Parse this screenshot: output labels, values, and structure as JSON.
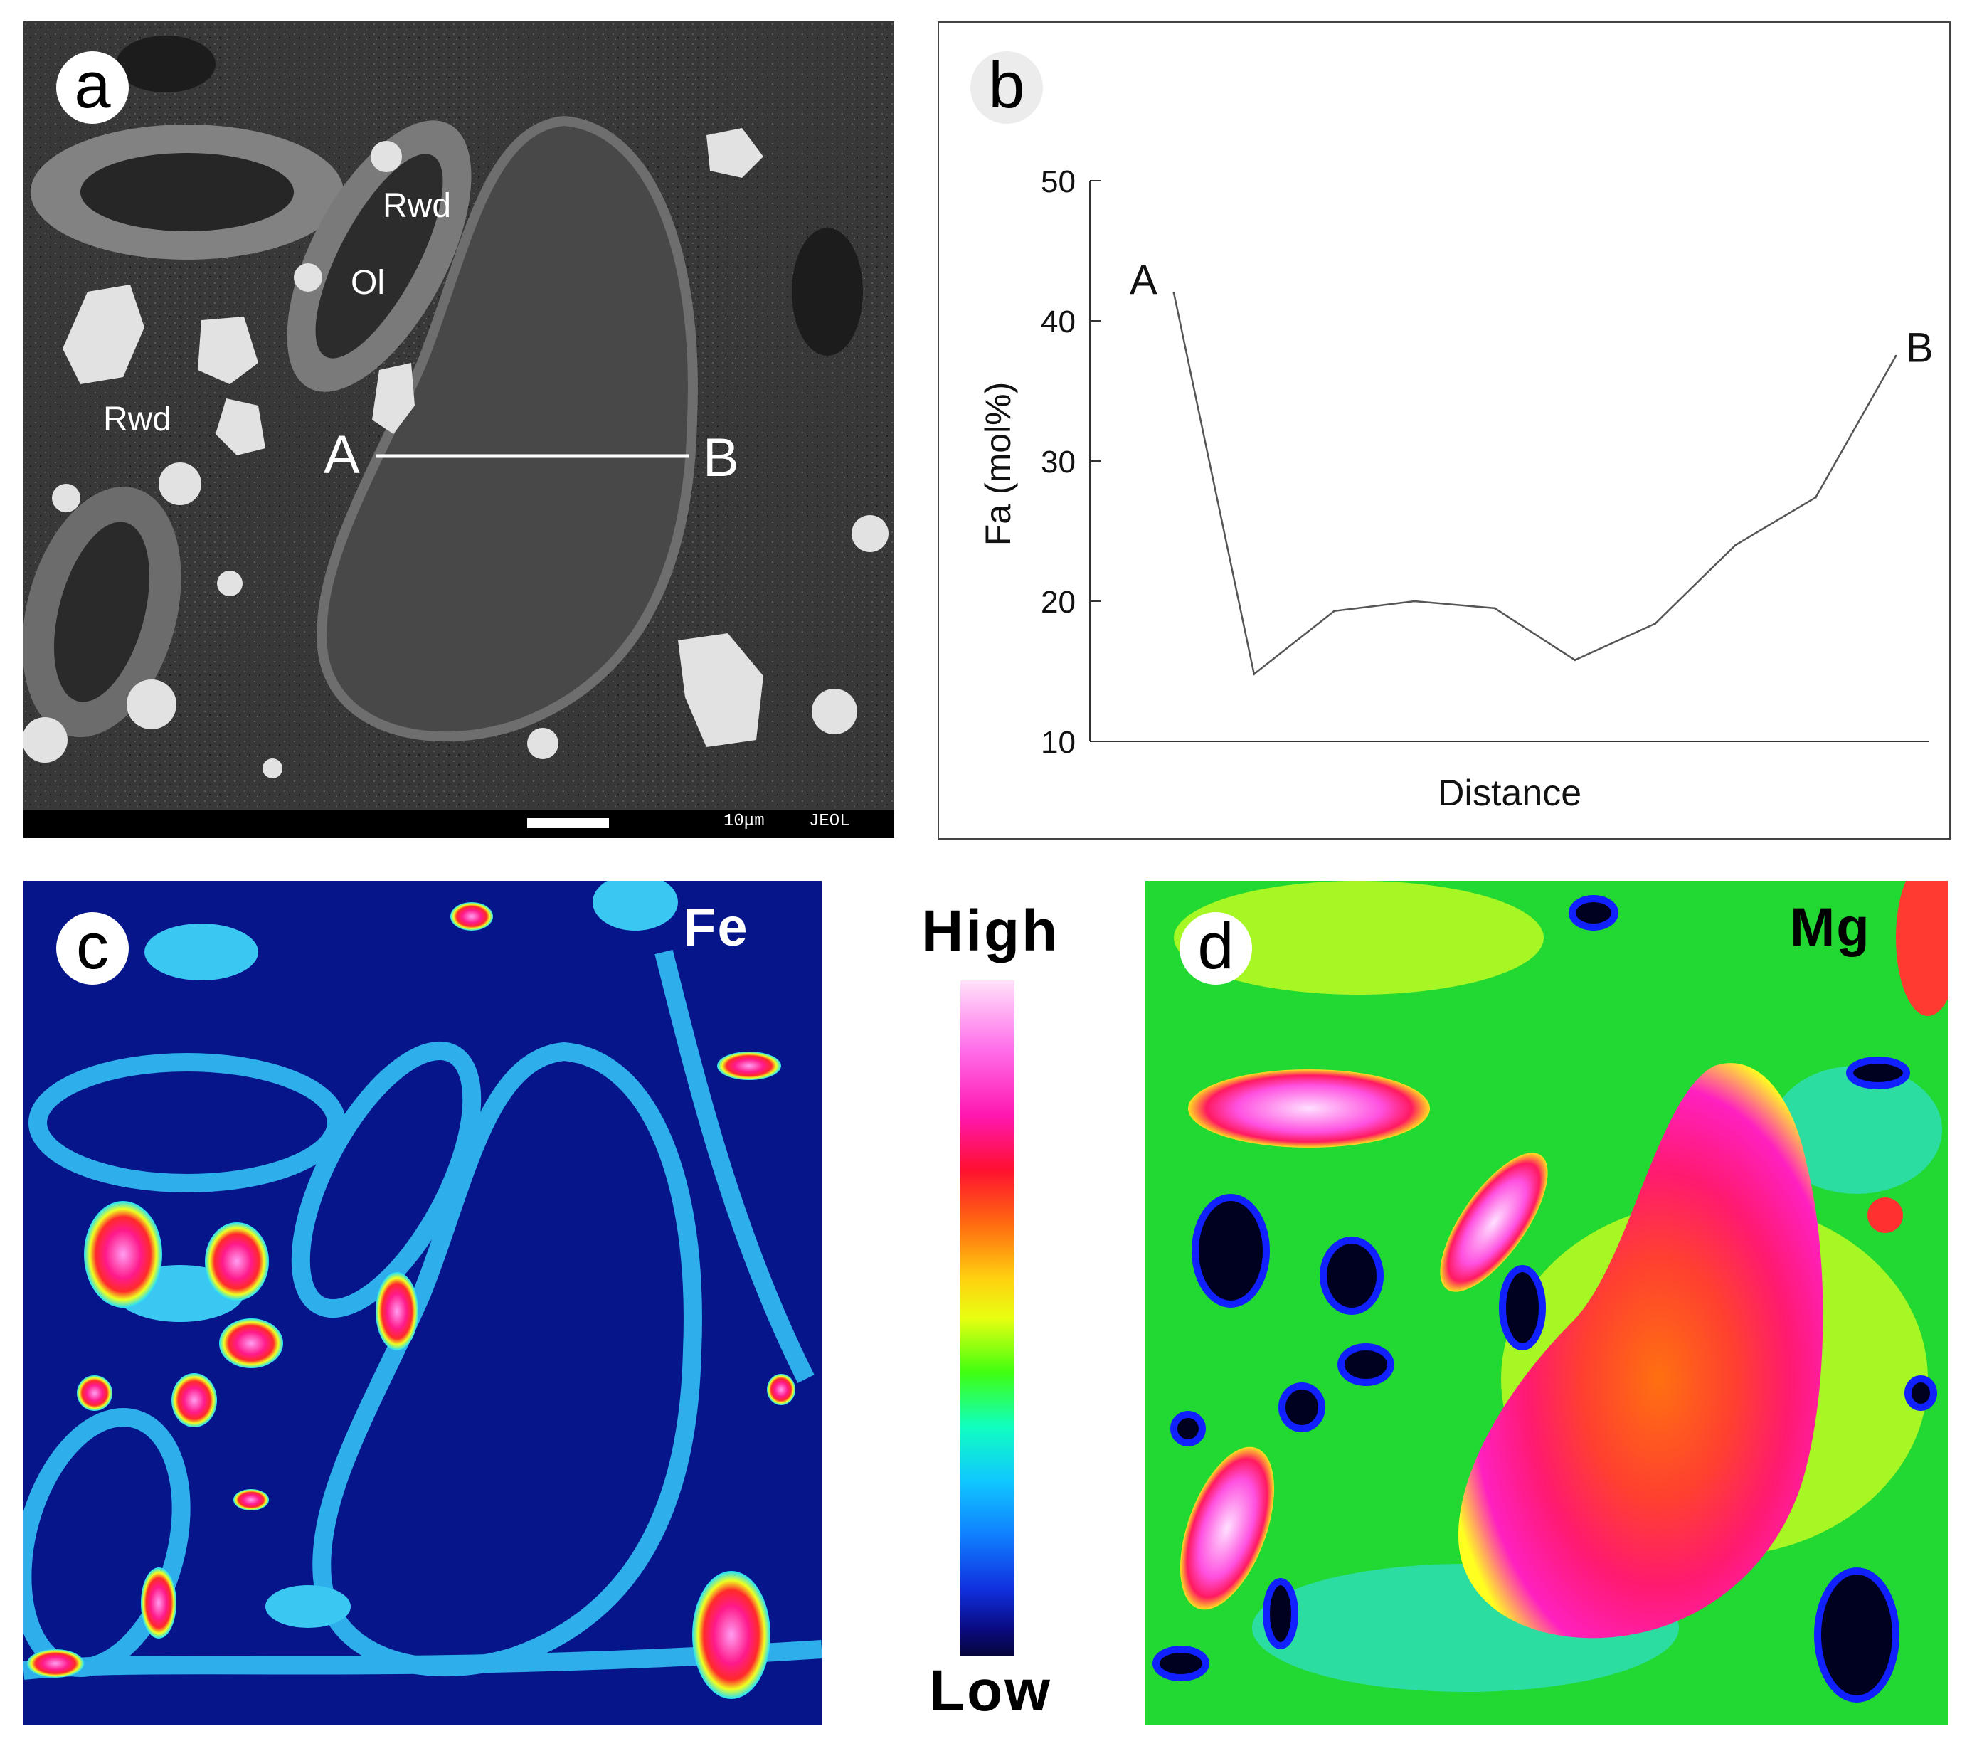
{
  "figure": {
    "panel_a": {
      "badge": "a",
      "labels": {
        "rwd_top": "Rwd",
        "ol": "Ol",
        "rwd_left": "Rwd",
        "point_a": "A",
        "point_b": "B"
      },
      "scalebar": {
        "length_text": "10μm",
        "maker": "JEOL"
      }
    },
    "panel_b": {
      "badge": "b"
    },
    "panel_c": {
      "badge": "c",
      "element": "Fe"
    },
    "panel_d": {
      "badge": "d",
      "element": "Mg"
    },
    "colorbar": {
      "high_label": "High",
      "low_label": "Low"
    }
  },
  "chart_data": {
    "type": "line",
    "title": "",
    "xlabel": "Distance",
    "ylabel": "Fa (mol%)",
    "ylim": [
      10,
      50
    ],
    "yticks": [
      10,
      20,
      30,
      40,
      50
    ],
    "x": [
      1,
      2,
      3,
      4,
      5,
      6,
      7,
      8,
      9,
      10
    ],
    "values": [
      42,
      14.8,
      19.3,
      20.0,
      19.5,
      15.8,
      18.4,
      24.0,
      27.4,
      37.5
    ],
    "start_label": "A",
    "end_label": "B"
  },
  "colors": {
    "line": "#555555",
    "sem_background": "#3a3a3a",
    "fe_background": "#06168a",
    "mg_background": "#22d832"
  }
}
